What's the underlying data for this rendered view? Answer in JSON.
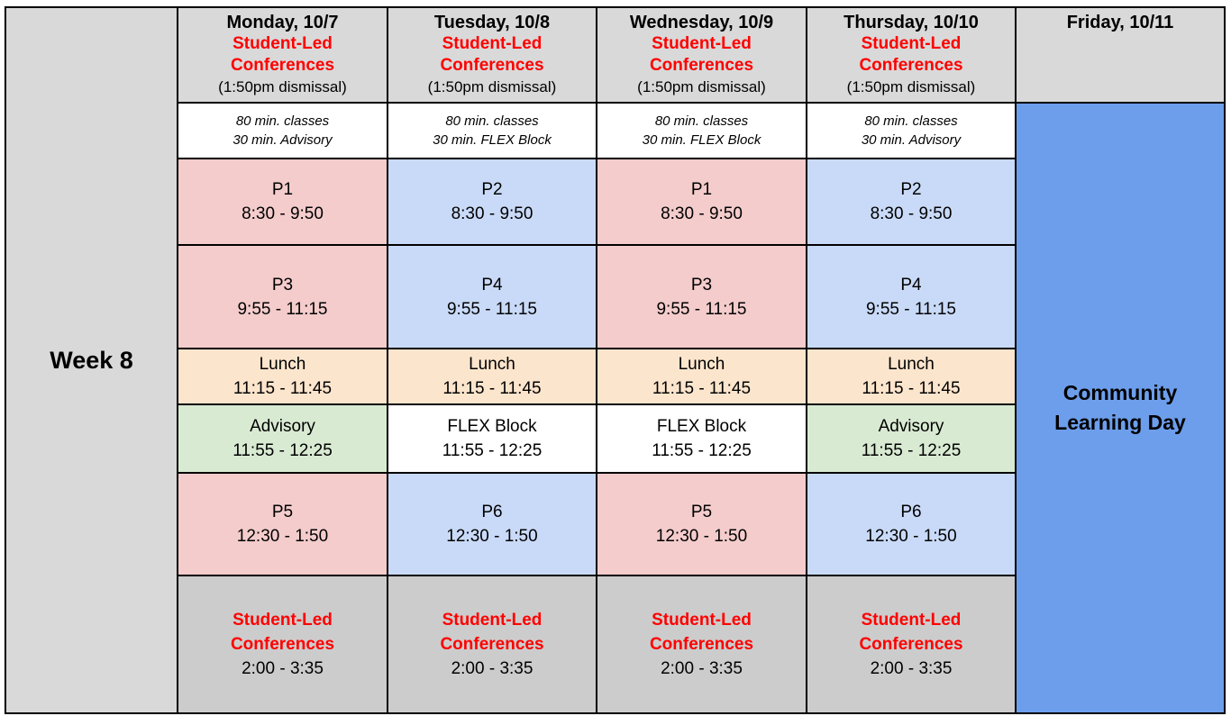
{
  "week_label": "Week 8",
  "days": [
    {
      "name": "Monday, 10/7",
      "event_line1": "Student-Led",
      "event_line2": "Conferences",
      "dismissal": "(1:50pm dismissal)",
      "note1": "80 min. classes",
      "note2": "30 min. Advisory"
    },
    {
      "name": "Tuesday, 10/8",
      "event_line1": "Student-Led",
      "event_line2": "Conferences",
      "dismissal": "(1:50pm dismissal)",
      "note1": "80 min. classes",
      "note2": "30 min. FLEX Block"
    },
    {
      "name": "Wednesday, 10/9",
      "event_line1": "Student-Led",
      "event_line2": "Conferences",
      "dismissal": "(1:50pm dismissal)",
      "note1": "80 min. classes",
      "note2": "30 min. FLEX Block"
    },
    {
      "name": "Thursday, 10/10",
      "event_line1": "Student-Led",
      "event_line2": "Conferences",
      "dismissal": "(1:50pm dismissal)",
      "note1": "80 min. classes",
      "note2": "30 min. Advisory"
    }
  ],
  "friday": {
    "name": "Friday, 10/11",
    "event_line1": "Community",
    "event_line2": "Learning Day"
  },
  "rows": [
    [
      {
        "label": "P1",
        "time": "8:30 - 9:50"
      },
      {
        "label": "P2",
        "time": "8:30 - 9:50"
      },
      {
        "label": "P1",
        "time": "8:30 - 9:50"
      },
      {
        "label": "P2",
        "time": "8:30 - 9:50"
      }
    ],
    [
      {
        "label": "P3",
        "time": "9:55 - 11:15"
      },
      {
        "label": "P4",
        "time": "9:55 - 11:15"
      },
      {
        "label": "P3",
        "time": "9:55 - 11:15"
      },
      {
        "label": "P4",
        "time": "9:55 - 11:15"
      }
    ],
    [
      {
        "label": "Lunch",
        "time": "11:15 - 11:45"
      },
      {
        "label": "Lunch",
        "time": "11:15 - 11:45"
      },
      {
        "label": "Lunch",
        "time": "11:15 - 11:45"
      },
      {
        "label": "Lunch",
        "time": "11:15 - 11:45"
      }
    ],
    [
      {
        "label": "Advisory",
        "time": "11:55 - 12:25"
      },
      {
        "label": "FLEX Block",
        "time": "11:55 - 12:25"
      },
      {
        "label": "FLEX Block",
        "time": "11:55 - 12:25"
      },
      {
        "label": "Advisory",
        "time": "11:55 - 12:25"
      }
    ],
    [
      {
        "label": "P5",
        "time": "12:30 - 1:50"
      },
      {
        "label": "P6",
        "time": "12:30 - 1:50"
      },
      {
        "label": "P5",
        "time": "12:30 - 1:50"
      },
      {
        "label": "P6",
        "time": "12:30 - 1:50"
      }
    ]
  ],
  "conferences": [
    {
      "line1": "Student-Led",
      "line2": "Conferences",
      "time": "2:00 - 3:35"
    },
    {
      "line1": "Student-Led",
      "line2": "Conferences",
      "time": "2:00 - 3:35"
    },
    {
      "line1": "Student-Led",
      "line2": "Conferences",
      "time": "2:00 - 3:35"
    },
    {
      "line1": "Student-Led",
      "line2": "Conferences",
      "time": "2:00 - 3:35"
    }
  ],
  "colors": {
    "odd_period": "#f4cccc",
    "even_period": "#c9daf8",
    "lunch": "#fce5cd",
    "advisory": "#d9ead3",
    "header": "#d9d9d9",
    "conference": "#cccccc",
    "friday": "#6d9eeb",
    "event_text": "#ff0000"
  }
}
